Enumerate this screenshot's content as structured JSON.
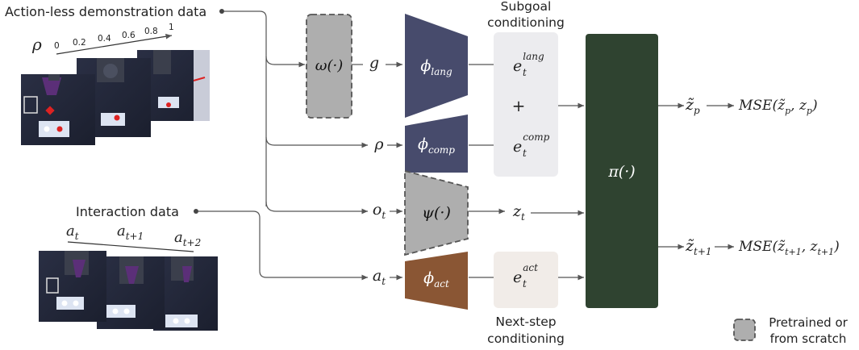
{
  "labels": {
    "actionless": "Action-less demonstration data",
    "interaction": "Interaction data",
    "rho_axis": "ρ",
    "subgoal_line1": "Subgoal",
    "subgoal_line2": "conditioning",
    "nextstep_line1": "Next-step",
    "nextstep_line2": "conditioning",
    "legend_line1": "Pretrained or",
    "legend_line2": "from scratch"
  },
  "ticks": [
    "0",
    "0.2",
    "0.4",
    "0.6",
    "0.8",
    "1"
  ],
  "action_labels": {
    "a0": {
      "base": "a",
      "sub": "t"
    },
    "a1": {
      "base": "a",
      "sub": "t+1"
    },
    "a2": {
      "base": "a",
      "sub": "t+2"
    }
  },
  "blocks": {
    "omega": "ω(·)",
    "phi_lang": {
      "base": "ϕ",
      "sub": "lang"
    },
    "phi_comp": {
      "base": "ϕ",
      "sub": "comp"
    },
    "psi": "ψ(·)",
    "phi_act": {
      "base": "ϕ",
      "sub": "act"
    },
    "pi": "π(·)"
  },
  "signals": {
    "g": "g",
    "rho": "ρ",
    "o_t": {
      "base": "o",
      "sub": "t"
    },
    "a_t": {
      "base": "a",
      "sub": "t"
    },
    "e_lang": {
      "base": "e",
      "sub": "t",
      "sup": "lang"
    },
    "plus": "+",
    "e_comp": {
      "base": "e",
      "sub": "t",
      "sup": "comp"
    },
    "z_t": {
      "base": "z",
      "sub": "t"
    },
    "e_act": {
      "base": "e",
      "sub": "t",
      "sup": "act"
    }
  },
  "outputs": {
    "zp": {
      "base": "z̃",
      "sub": "p"
    },
    "mse_p": {
      "pre": "MSE(",
      "b1": "z̃",
      "s1": "p",
      "mid": ", ",
      "b2": "z",
      "s2": "p",
      "post": ")"
    },
    "zt1": {
      "base": "z̃",
      "sub": "t+1"
    },
    "mse_t1": {
      "pre": "MSE(",
      "b1": "z̃",
      "s1": "t+1",
      "mid": ", ",
      "b2": "z",
      "s2": "t+1",
      "post": ")"
    }
  },
  "colors": {
    "phi_fill": "#474b6c",
    "phi_act_fill": "#8a5634",
    "gray_block": "#aeaeae",
    "cond_panel": "#ececef",
    "cond_panel_act": "#f1ece8",
    "pi_fill": "#2f4330",
    "line": "#555555"
  }
}
